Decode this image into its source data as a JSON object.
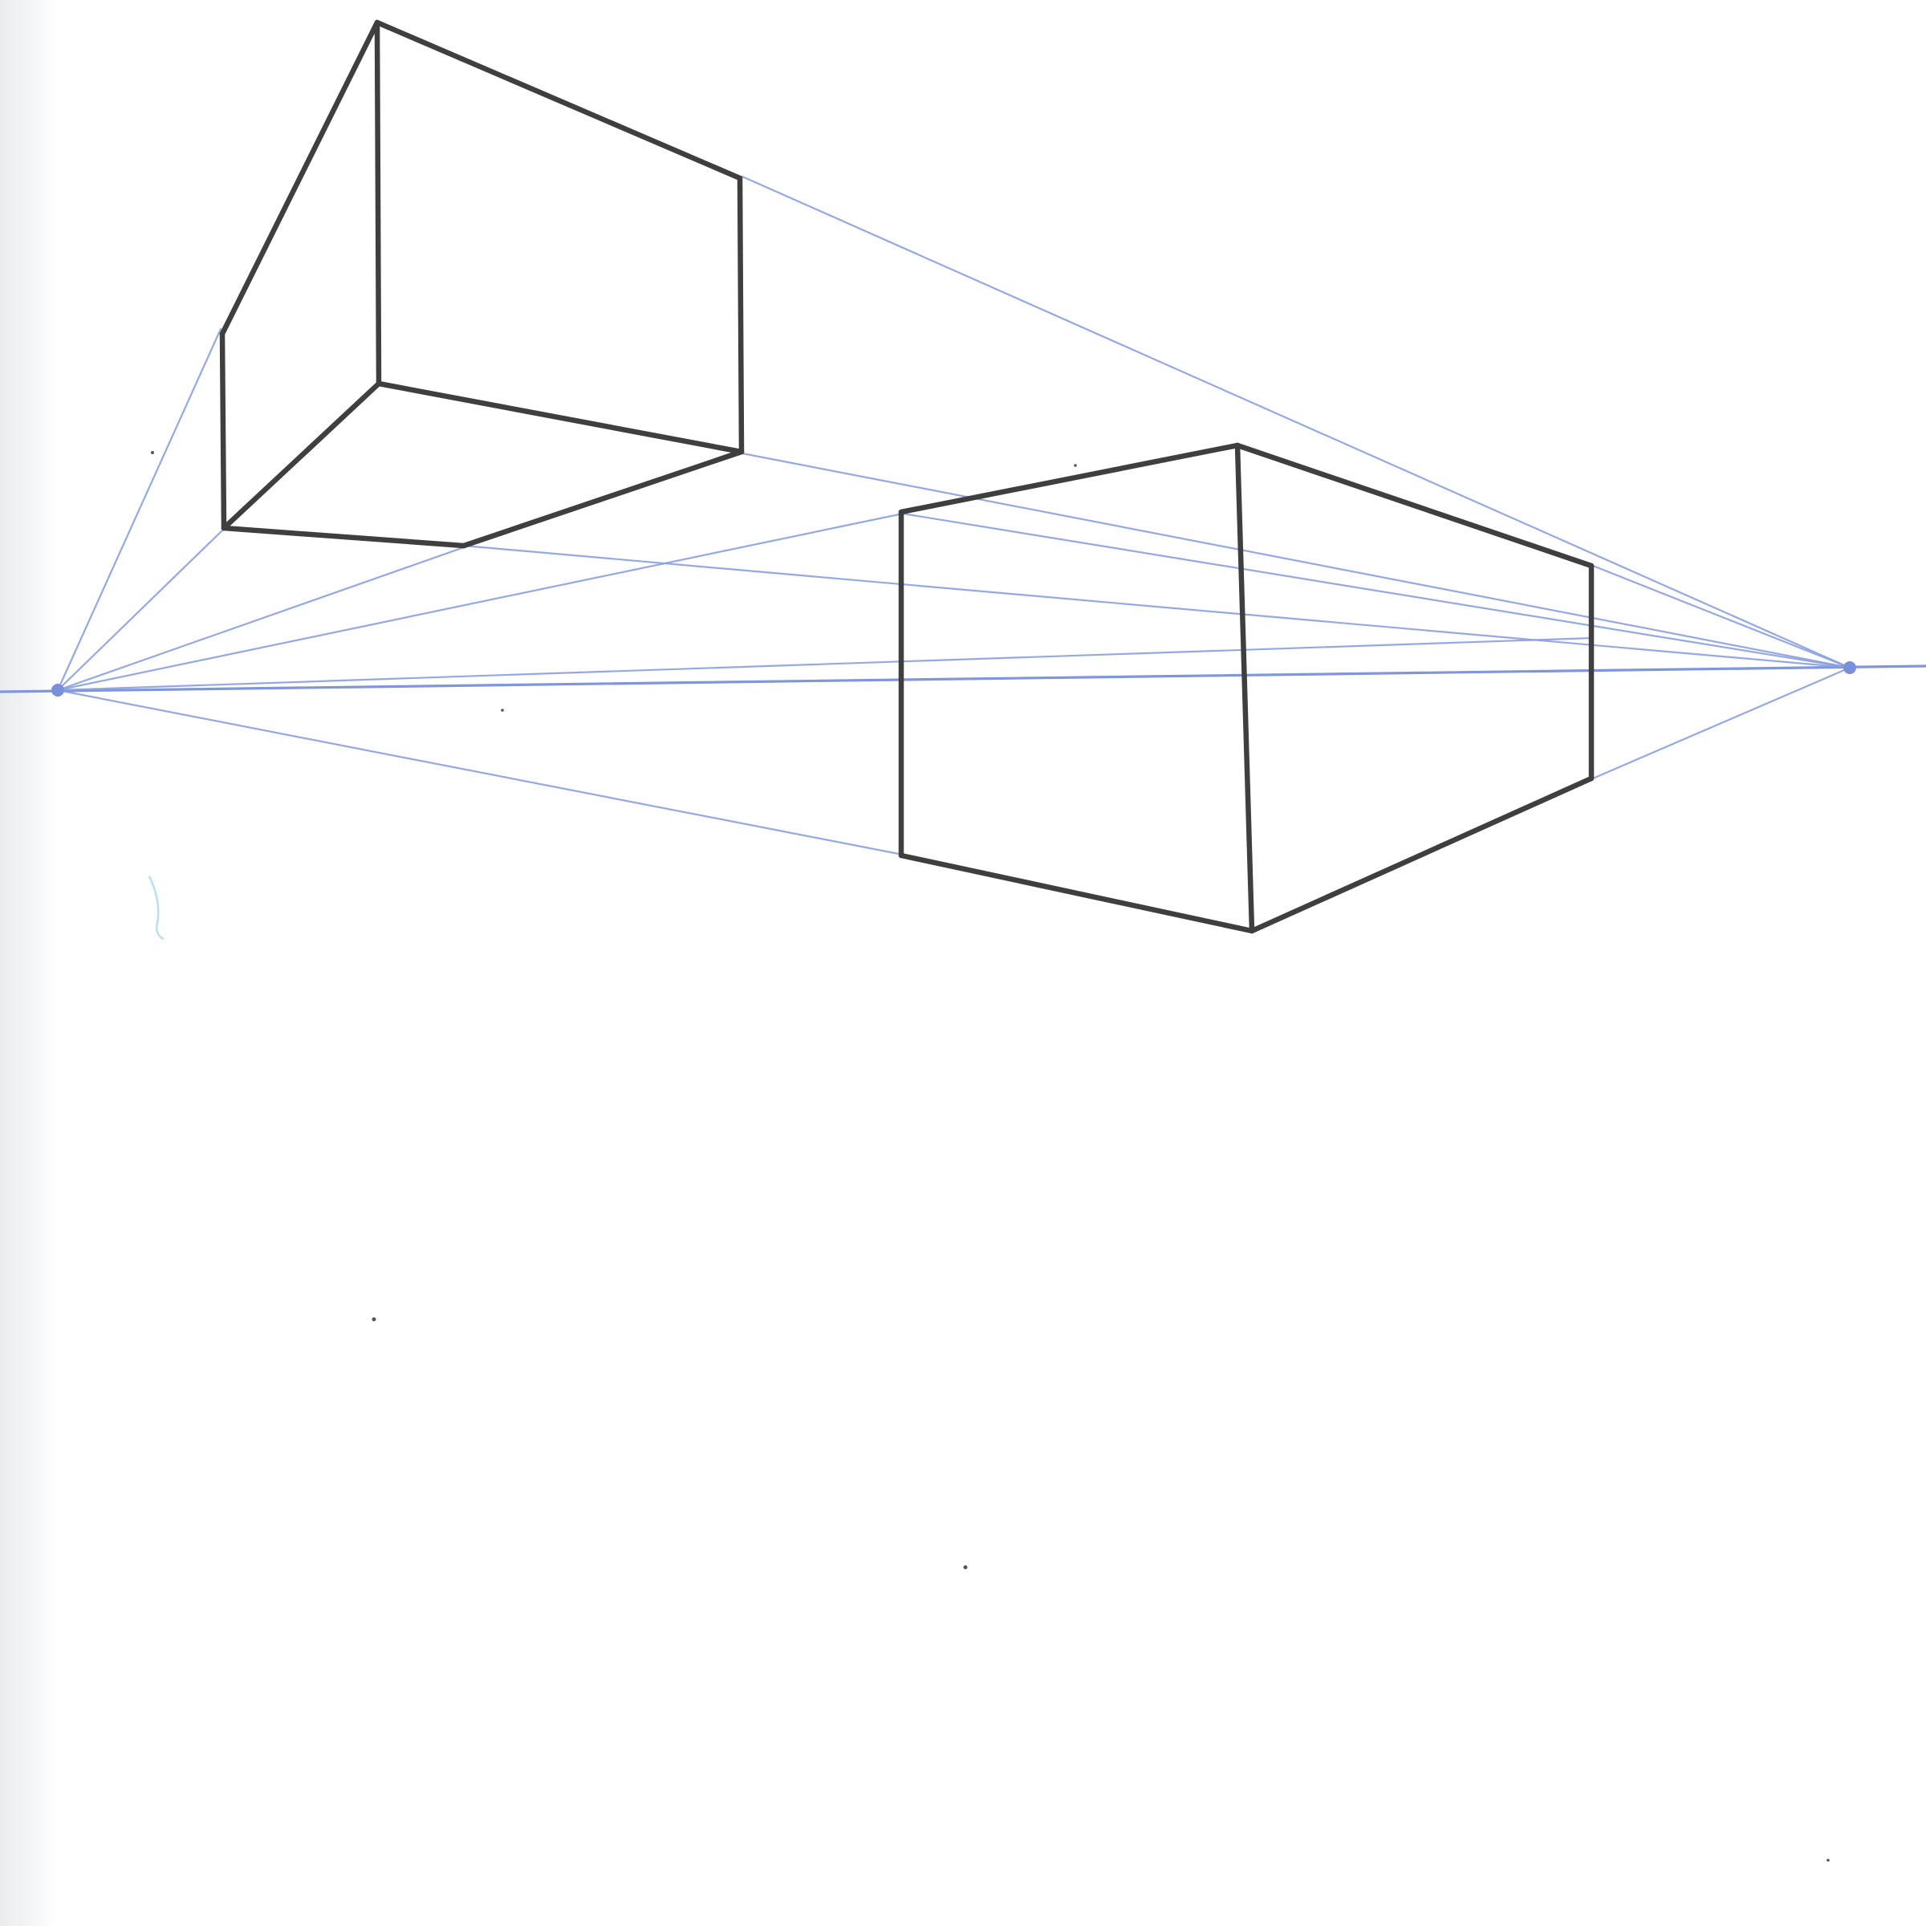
{
  "sheet": {
    "background_color": "#ffffff",
    "paper_edge_color": "#e9ecee"
  },
  "colors": {
    "guide_lines": "#8a9ee0",
    "horizon_line": "#7f95dc",
    "box_edges": "#3f3f3f",
    "vanishing_points": "#7890da"
  }
}
